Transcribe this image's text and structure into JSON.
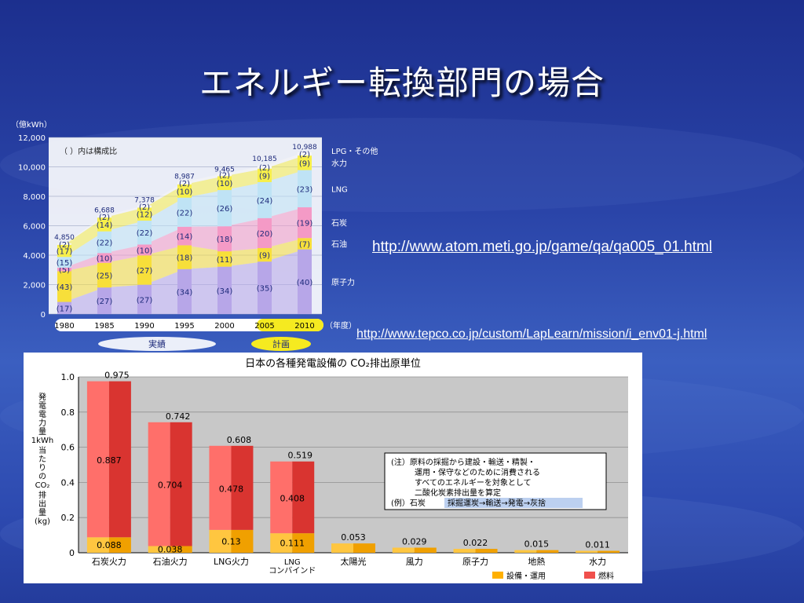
{
  "slide": {
    "title": "エネルギー転換部門の場合",
    "links": [
      "http://www.atom.meti.go.jp/game/qa/qa005_01.html",
      "http://www.tepco.co.jp/custom/LapLearn/mission/i_env01-j.html"
    ]
  },
  "chart_data": [
    {
      "type": "area",
      "yunit": "（億kWh）",
      "ylim": [
        0,
        12000
      ],
      "ytick_labels": [
        "0",
        "2,000",
        "4,000",
        "6,000",
        "8,000",
        "10,000",
        "12,000"
      ],
      "note": "（ ）内は構成比",
      "categories": [
        "1980",
        "1985",
        "1990",
        "1995",
        "2000",
        "2005",
        "2010"
      ],
      "x_suffix": "（年度）",
      "group_labels": [
        "実績",
        "計画"
      ],
      "totals": [
        4850,
        6688,
        7378,
        8987,
        9465,
        10185,
        10988
      ],
      "total_labels": [
        "4,850",
        "6,688",
        "7,378",
        "8,987",
        "9,465",
        "10,185",
        "10,988"
      ],
      "series": [
        {
          "name": "原子力",
          "color": "#b7a6e8",
          "shares": [
            17,
            27,
            27,
            34,
            34,
            35,
            40
          ]
        },
        {
          "name": "石油",
          "color": "#f7df3a",
          "shares": [
            43,
            25,
            27,
            18,
            11,
            9,
            7
          ]
        },
        {
          "name": "石炭",
          "color": "#f49ac6",
          "shares": [
            5,
            10,
            10,
            14,
            18,
            20,
            19
          ]
        },
        {
          "name": "LNG",
          "color": "#bfe3f5",
          "shares": [
            15,
            22,
            22,
            22,
            26,
            24,
            23
          ]
        },
        {
          "name": "水力",
          "color": "#f7ef4a",
          "shares": [
            17,
            14,
            12,
            10,
            10,
            9,
            9
          ]
        },
        {
          "name": "LPG・その他",
          "color": "#f5f5f5",
          "shares": [
            2,
            2,
            2,
            2,
            2,
            2,
            2
          ]
        }
      ]
    },
    {
      "type": "bar",
      "title": "日本の各種発電設備の CO₂排出原単位",
      "ylabel": "発電電力量1kWh当たりのCO₂排出量(kg)",
      "ylim": [
        0,
        1.0
      ],
      "ytick_labels": [
        "0",
        "0.2",
        "0.4",
        "0.6",
        "0.8",
        "1.0"
      ],
      "categories": [
        "石炭火力",
        "石油火力",
        "LNG火力",
        "LNG\nコンバインド",
        "太陽光",
        "風力",
        "原子力",
        "地熱",
        "水力"
      ],
      "series": [
        {
          "name": "設備・運用",
          "color": "#ffb000",
          "values": [
            0.088,
            0.038,
            0.13,
            0.111,
            0.053,
            0.029,
            0.022,
            0.015,
            0.011
          ]
        },
        {
          "name": "燃料",
          "color": "#f0504c",
          "values": [
            0.887,
            0.704,
            0.478,
            0.408,
            null,
            null,
            null,
            null,
            null
          ]
        }
      ],
      "total_labels": [
        "0.975",
        "0.742",
        "0.608",
        "0.519",
        "0.053",
        "0.029",
        "0.022",
        "0.015",
        "0.011"
      ],
      "inner_labels_fuel": [
        "0.887",
        "0.704",
        "0.478",
        "0.408"
      ],
      "inner_labels_facility": [
        "0.088",
        "0.038",
        "0.13",
        "0.111"
      ],
      "note_lines": [
        "(注）原料の採掘から建設・輸送・精製・",
        "運用・保守などのために消費される",
        "すべてのエネルギーを対象として",
        "二酸化炭素排出量を算定",
        "(例）石炭"
      ],
      "note_flow": "採掘運炭→輸送→発電→灰捨"
    }
  ]
}
